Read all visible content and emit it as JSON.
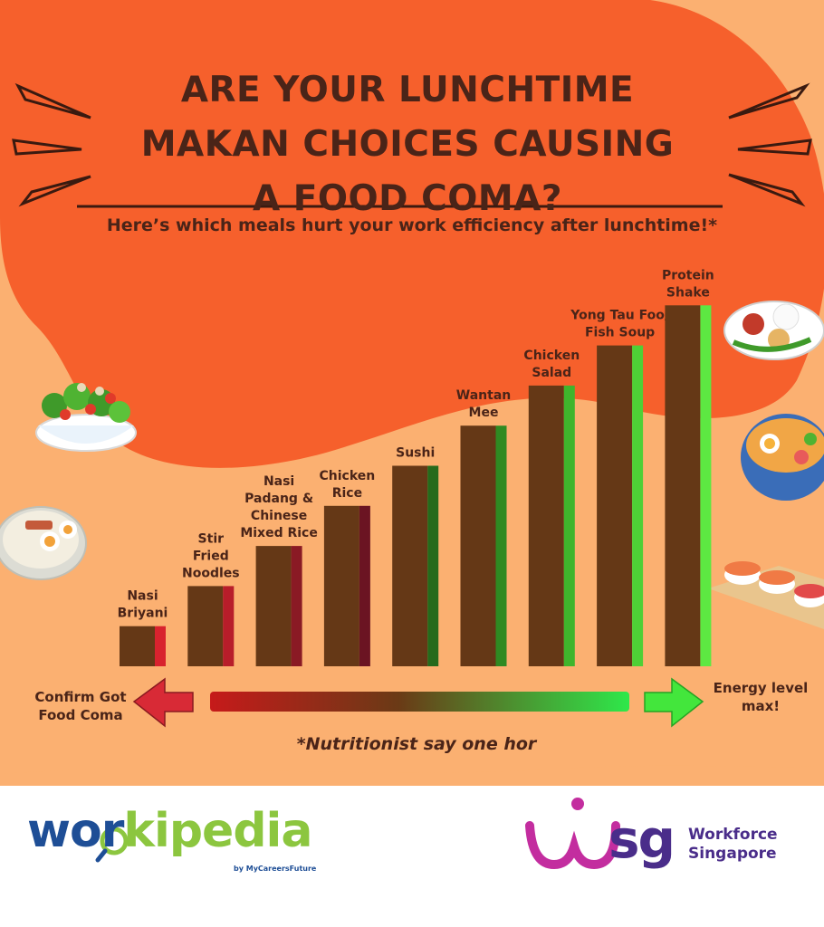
{
  "title_lines": [
    "ARE YOUR LUNCHTIME",
    "MAKAN CHOICES CAUSING",
    "A FOOD COMA?"
  ],
  "subtitle": "Here’s which meals hurt your work efficiency after lunchtime!*",
  "scale": {
    "left_label": "Confirm Got Food Coma",
    "right_label": "Energy level max!",
    "low_color": "#d12a2a",
    "high_color": "#2ee84a"
  },
  "footnote": "*Nutritionist say one hor",
  "colors": {
    "bg_orange": "#f6602c",
    "bg_peach": "#fbb071",
    "bar_brown": "#653816",
    "text_dark": "#4a2418"
  },
  "chart_data": {
    "type": "bar",
    "title": "ARE YOUR LUNCHTIME MAKAN CHOICES CAUSING A FOOD COMA?",
    "categories": [
      "Nasi Briyani",
      "Stir Fried Noodles",
      "Nasi Padang & Chinese Mixed Rice",
      "Chicken Rice",
      "Sushi",
      "Wantan Mee",
      "Chicken Salad",
      "Yong Tau Foo/ Fish Soup",
      "Protein Shake"
    ],
    "label_lines": [
      [
        "Nasi",
        "Briyani"
      ],
      [
        "Stir",
        "Fried",
        "Noodles"
      ],
      [
        "Nasi",
        "Padang &",
        "Chinese",
        "Mixed Rice"
      ],
      [
        "Chicken",
        "Rice"
      ],
      [
        "Sushi"
      ],
      [
        "Wantan",
        "Mee"
      ],
      [
        "Chicken",
        "Salad"
      ],
      [
        "Yong Tau Foo/",
        "Fish Soup"
      ],
      [
        "Protein",
        "Shake"
      ]
    ],
    "values": [
      1,
      2,
      3,
      4,
      5,
      6,
      7,
      8,
      9
    ],
    "stripe_colors": [
      "#d8222e",
      "#b81d2a",
      "#8a1a24",
      "#6b1422",
      "#256a1c",
      "#2f8a22",
      "#3fb52c",
      "#4ed036",
      "#5de842"
    ],
    "xlabel": "",
    "ylabel": "",
    "grid": false,
    "legend": "none"
  },
  "logos": {
    "workipedia_a": "wor",
    "workipedia_b": "kipedia",
    "workipedia_by": "by MyCareersFuture",
    "wsg_sg": "sg",
    "wsg_line1": "Workforce",
    "wsg_line2": "Singapore"
  }
}
